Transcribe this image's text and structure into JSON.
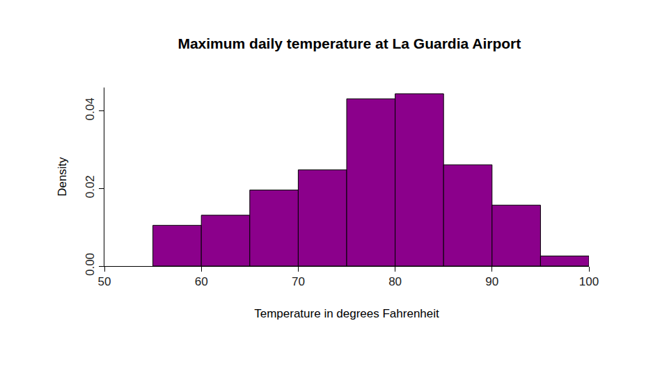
{
  "chart_data": {
    "type": "histogram",
    "title": "Maximum daily temperature at La Guardia Airport",
    "x_label": "Temperature in degrees Fahrenheit",
    "y_label": "Density",
    "bins": [
      55,
      60,
      65,
      70,
      75,
      80,
      85,
      90,
      95,
      100
    ],
    "values": [
      0.0105,
      0.0131,
      0.0196,
      0.0248,
      0.0431,
      0.0444,
      0.0261,
      0.0157,
      0.0026
    ],
    "color": "#8b008b",
    "xlim": [
      50,
      100
    ],
    "xticks": [
      50,
      60,
      70,
      80,
      90,
      100
    ],
    "ylim": [
      0,
      0.046
    ],
    "yticks": [
      {
        "value": 0,
        "label": "0.00"
      },
      {
        "value": 0.02,
        "label": "0.02"
      },
      {
        "value": 0.04,
        "label": "0.04"
      }
    ],
    "grid": false
  }
}
